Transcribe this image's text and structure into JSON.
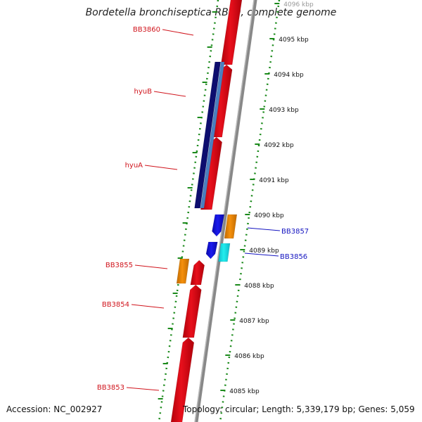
{
  "title": "Bordetella bronchiseptica RB50, complete genome",
  "accession": "Accession: NC_002927",
  "topology": "Topology: circular; Length: 5,339,179 bp; Genes: 5,059",
  "colors": {
    "forward_gene": "#e8101c",
    "reverse_gene": "#1a1aee",
    "orange_gene": "#f5900c",
    "cyan_gene": "#22eeee",
    "navy_gene": "#0d0d6e",
    "steel_gene": "#4a7fbf",
    "backbone": "#888888",
    "ticks": "#1b8a1b",
    "left_labels": "#d0141c",
    "right_labels": "#1414c0"
  },
  "scale": {
    "ticks": [
      "4096 kbp",
      "4095 kbp",
      "4094 kbp",
      "4093 kbp",
      "4092 kbp",
      "4091 kbp",
      "4090 kbp",
      "4089 kbp",
      "4088 kbp",
      "4087 kbp",
      "4086 kbp",
      "4085 kbp"
    ]
  },
  "labels": {
    "left": [
      "BB3860",
      "hyuB",
      "hyuA",
      "BB3855",
      "BB3854",
      "BB3853"
    ],
    "right": [
      "BB3857",
      "BB3856"
    ]
  }
}
